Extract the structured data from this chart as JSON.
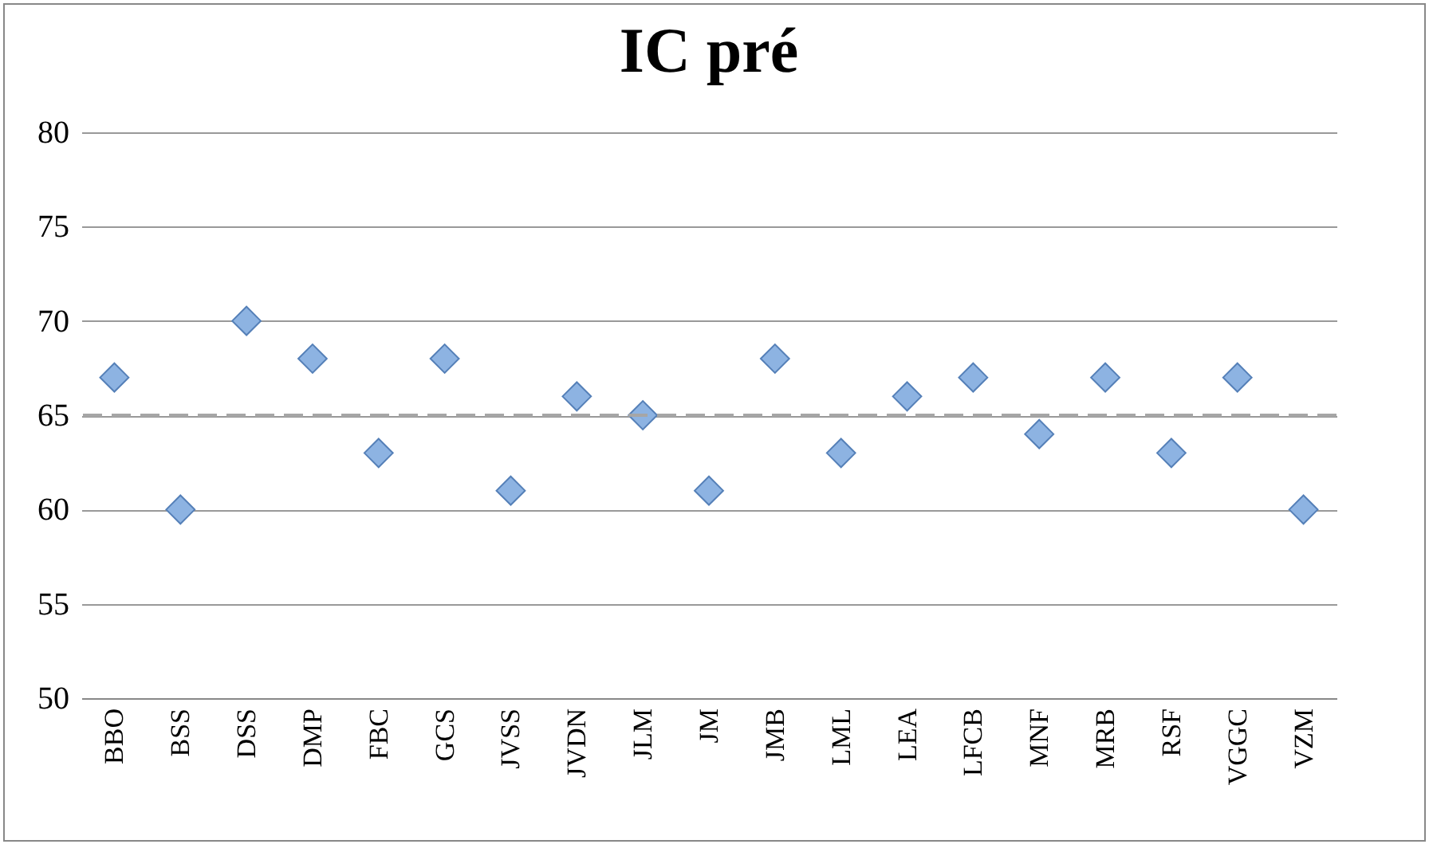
{
  "chart_data": {
    "type": "scatter",
    "title": "IC pré",
    "categories": [
      "BBO",
      "BSS",
      "DSS",
      "DMP",
      "FBC",
      "GCS",
      "JVSS",
      "JVDN",
      "JLM",
      "JM",
      "JMB",
      "LML",
      "LEA",
      "LFCB",
      "MNF",
      "MRB",
      "RSF",
      "VGGC",
      "VZM"
    ],
    "series": [
      {
        "color": "#8db3e2",
        "values": [
          67,
          60,
          70,
          68,
          63,
          68,
          61,
          66,
          65,
          61,
          68,
          63,
          66,
          67,
          64,
          67,
          63,
          67,
          60
        ]
      }
    ],
    "ylim": [
      50,
      80
    ],
    "yticks": [
      50,
      55,
      60,
      65,
      70,
      75,
      80
    ],
    "grid": "y",
    "marker": "diamond",
    "ref_lines": [
      {
        "axis": "y",
        "value": 65,
        "color": "#a6a6a6",
        "line_style": "dashed"
      }
    ]
  }
}
